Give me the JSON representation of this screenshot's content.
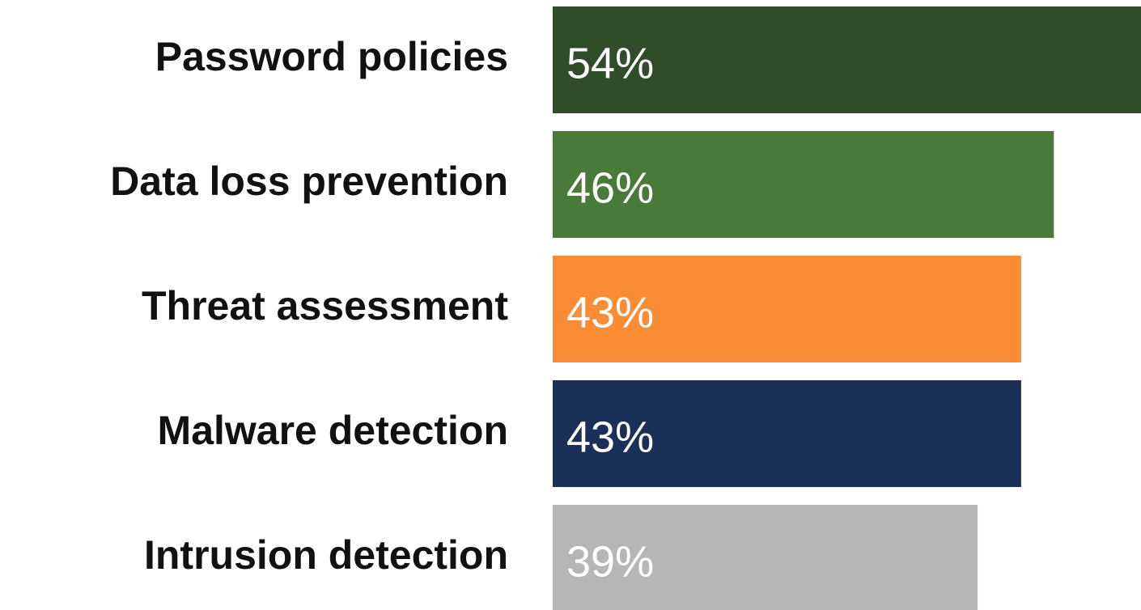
{
  "chart_data": {
    "type": "bar",
    "orientation": "horizontal",
    "categories": [
      "Password policies",
      "Data loss prevention",
      "Threat assessment",
      "Malware detection",
      "Intrusion detection"
    ],
    "values": [
      54,
      46,
      43,
      43,
      39
    ],
    "value_labels": [
      "54%",
      "46%",
      "43%",
      "43%",
      "39%"
    ],
    "colors": [
      "#2f4d29",
      "#4a7a39",
      "#f98c35",
      "#1b3056",
      "#b6b6b6"
    ],
    "xlim": [
      0,
      54
    ]
  }
}
